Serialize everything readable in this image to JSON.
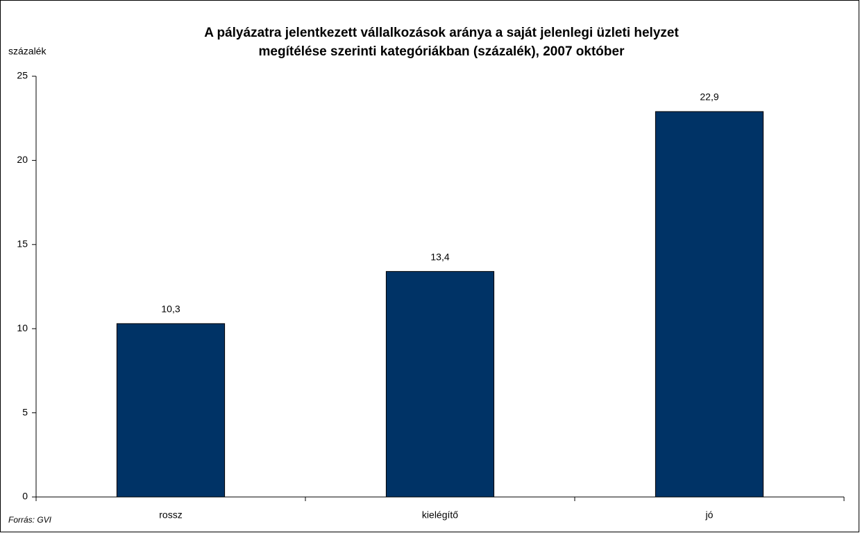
{
  "chart_data": {
    "type": "bar",
    "title": [
      "A pályázatra jelentkezett vállalkozások aránya a saját jelenlegi üzleti helyzet",
      "megítélése szerinti kategóriákban (százalék), 2007 október"
    ],
    "y_label": "százalék",
    "source": "Forrás: GVI",
    "categories": [
      "rossz",
      "kielégítő",
      "jó"
    ],
    "values": [
      10.3,
      13.4,
      22.9
    ],
    "value_labels": [
      "10,3",
      "13,4",
      "22,9"
    ],
    "color": "#003366",
    "ylim": [
      0,
      25
    ],
    "yticks": [
      0,
      5,
      10,
      15,
      20,
      25
    ],
    "grid": false
  }
}
